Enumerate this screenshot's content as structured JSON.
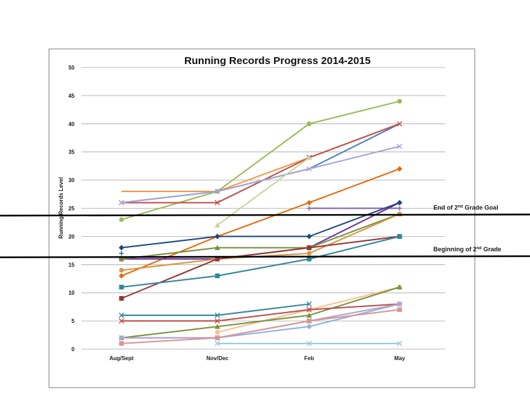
{
  "chart_data": {
    "type": "line",
    "title": "Running Records Progress 2014-2015",
    "ylabel": "Running Records Level",
    "xlabel": "",
    "categories": [
      "Aug/Sept",
      "Nov/Dec",
      "Feb",
      "May"
    ],
    "ylim": [
      0,
      50
    ],
    "yticks": [
      0,
      5,
      10,
      15,
      20,
      25,
      30,
      35,
      40,
      45,
      50
    ],
    "grid": true,
    "legend": "none",
    "reference_lines": [
      {
        "label_main": "End of 2",
        "label_sup": "nd",
        "label_rest": " Grade Goal",
        "y_left": 23.7,
        "y_right": 23.9
      },
      {
        "label_main": "Beginning of 2",
        "label_sup": "nd",
        "label_rest": " Grade",
        "y_left": 16.3,
        "y_right": 16.5
      }
    ],
    "series": [
      {
        "color": "#9bbb59",
        "marker": "circle",
        "values": [
          23,
          28,
          40,
          44
        ]
      },
      {
        "color": "#f79646",
        "marker": "none",
        "values": [
          28,
          28,
          34,
          40
        ]
      },
      {
        "color": "#4f81bd",
        "marker": "none",
        "values": [
          26,
          28,
          32,
          40
        ]
      },
      {
        "color": "#c0504d",
        "marker": "x",
        "values": [
          26,
          26,
          34,
          40
        ]
      },
      {
        "color": "#a5a5d6",
        "marker": "x",
        "values": [
          26,
          28,
          32,
          36
        ]
      },
      {
        "color": "#c4d79b",
        "marker": "triangle",
        "values": [
          null,
          22,
          34,
          null
        ]
      },
      {
        "color": "#e46c0a",
        "marker": "diamond",
        "values": [
          13,
          20,
          26,
          32
        ]
      },
      {
        "color": "#8064a2",
        "marker": "plus",
        "values": [
          null,
          null,
          25,
          25
        ]
      },
      {
        "color": "#7030a0",
        "marker": "diamond",
        "values": [
          16,
          16,
          18,
          26
        ]
      },
      {
        "color": "#1f497d",
        "marker": "diamond",
        "values": [
          18,
          20,
          20,
          26
        ]
      },
      {
        "color": "#76923c",
        "marker": "triangle",
        "values": [
          16,
          18,
          18,
          24
        ]
      },
      {
        "color": "#d99640",
        "marker": "circle",
        "values": [
          14,
          16,
          17,
          24
        ]
      },
      {
        "color": "#953735",
        "marker": "square",
        "values": [
          9,
          16,
          18,
          20
        ]
      },
      {
        "color": "#31859c",
        "marker": "square",
        "values": [
          11,
          13,
          16,
          20
        ]
      },
      {
        "color": "#366092",
        "marker": "plus",
        "values": [
          17,
          null,
          null,
          null
        ]
      },
      {
        "color": "#31859c",
        "marker": "x",
        "values": [
          6,
          6,
          8,
          null
        ]
      },
      {
        "color": "#fabf8f",
        "marker": "circle",
        "values": [
          null,
          3,
          7,
          11
        ]
      },
      {
        "color": "#77933c",
        "marker": "triangle",
        "values": [
          2,
          4,
          6,
          11
        ]
      },
      {
        "color": "#c0504d",
        "marker": "x",
        "values": [
          5,
          5,
          7,
          8
        ]
      },
      {
        "color": "#8db3e2",
        "marker": "diamond",
        "values": [
          2,
          2,
          4,
          8
        ]
      },
      {
        "color": "#b3a2c7",
        "marker": "x",
        "values": [
          2,
          2,
          5,
          8
        ]
      },
      {
        "color": "#d99694",
        "marker": "square",
        "values": [
          1,
          2,
          5,
          7
        ]
      },
      {
        "color": "#93cddd",
        "marker": "x",
        "values": [
          null,
          1,
          1,
          1
        ]
      }
    ]
  }
}
